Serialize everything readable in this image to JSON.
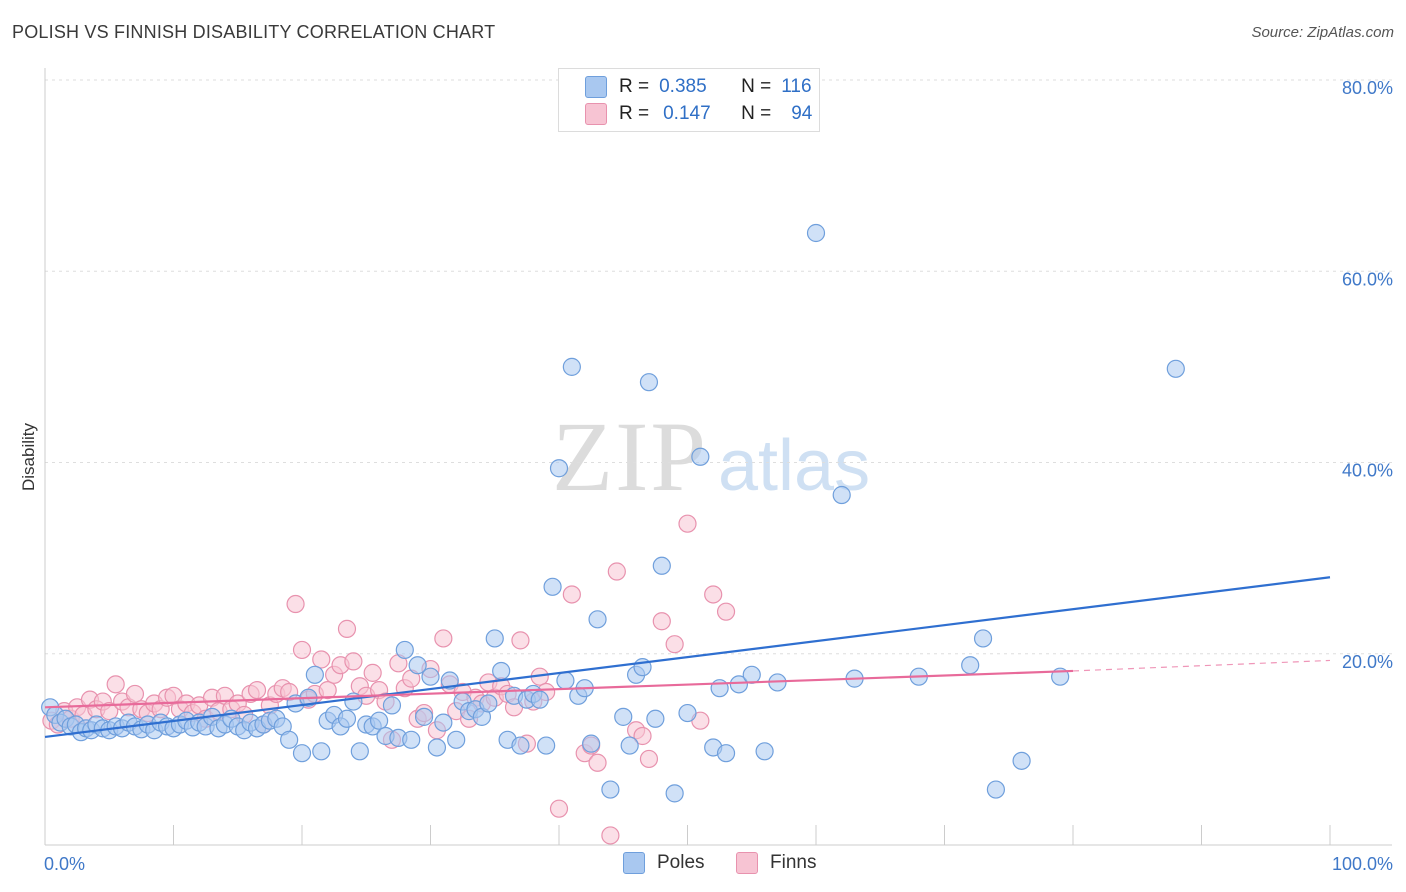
{
  "title": "POLISH VS FINNISH DISABILITY CORRELATION CHART",
  "source": "Source: ZipAtlas.com",
  "watermark": {
    "zip": "ZIP",
    "atlas": "atlas"
  },
  "legend": {
    "r_label": "R =",
    "n_label": "N =",
    "rows": [
      {
        "r": "0.385",
        "n": "116",
        "color": "#a9c8f0",
        "border": "#6f9fdc"
      },
      {
        "r": "0.147",
        "n": "94",
        "color": "#f7c4d3",
        "border": "#e892ae"
      }
    ]
  },
  "bottom_legend": [
    {
      "label": "Poles",
      "color": "#a9c8f0",
      "border": "#6f9fdc"
    },
    {
      "label": "Finns",
      "color": "#f7c4d3",
      "border": "#e892ae"
    }
  ],
  "chart_data": {
    "type": "scatter",
    "title": "POLISH VS FINNISH DISABILITY CORRELATION CHART",
    "xlabel": "",
    "ylabel": "Disability",
    "xlim": [
      0,
      100
    ],
    "ylim": [
      0,
      80
    ],
    "x_tick_labels": [
      "0.0%",
      "100.0%"
    ],
    "y_ticks": [
      20,
      40,
      60,
      80
    ],
    "y_tick_labels": [
      "20.0%",
      "40.0%",
      "60.0%",
      "80.0%"
    ],
    "grid": "horizontal dashed",
    "series": [
      {
        "name": "Poles",
        "color": "#6f9fdc",
        "fill": "#a9c8f0",
        "line_color": "#2f6fd0",
        "trend": {
          "x": [
            0,
            100
          ],
          "y": [
            11.3,
            28.0
          ]
        },
        "points": [
          [
            0.4,
            14.4
          ],
          [
            0.8,
            13.6
          ],
          [
            1.2,
            12.8
          ],
          [
            1.6,
            13.2
          ],
          [
            2.0,
            12.4
          ],
          [
            2.4,
            12.6
          ],
          [
            2.8,
            11.8
          ],
          [
            3.2,
            12.2
          ],
          [
            3.6,
            12.0
          ],
          [
            4.0,
            12.6
          ],
          [
            4.5,
            12.2
          ],
          [
            5.0,
            12.0
          ],
          [
            5.5,
            12.4
          ],
          [
            6.0,
            12.2
          ],
          [
            6.5,
            12.8
          ],
          [
            7.0,
            12.4
          ],
          [
            7.5,
            12.1
          ],
          [
            8.0,
            12.6
          ],
          [
            8.5,
            12.0
          ],
          [
            9.0,
            12.8
          ],
          [
            9.5,
            12.4
          ],
          [
            10.0,
            12.2
          ],
          [
            10.5,
            12.6
          ],
          [
            11.0,
            13.0
          ],
          [
            11.5,
            12.3
          ],
          [
            12.0,
            12.8
          ],
          [
            12.5,
            12.4
          ],
          [
            13.0,
            13.4
          ],
          [
            13.5,
            12.2
          ],
          [
            14.0,
            12.6
          ],
          [
            14.5,
            13.2
          ],
          [
            15.0,
            12.4
          ],
          [
            15.5,
            12.0
          ],
          [
            16.0,
            12.8
          ],
          [
            16.5,
            12.2
          ],
          [
            17.0,
            12.6
          ],
          [
            17.5,
            13.0
          ],
          [
            18.0,
            13.2
          ],
          [
            18.5,
            12.4
          ],
          [
            19.0,
            11.0
          ],
          [
            19.5,
            14.8
          ],
          [
            20.0,
            9.6
          ],
          [
            20.5,
            15.4
          ],
          [
            21.0,
            17.8
          ],
          [
            21.5,
            9.8
          ],
          [
            22.0,
            13.0
          ],
          [
            22.5,
            13.6
          ],
          [
            23.0,
            12.4
          ],
          [
            23.5,
            13.2
          ],
          [
            24.0,
            15.0
          ],
          [
            24.5,
            9.8
          ],
          [
            25.0,
            12.6
          ],
          [
            25.5,
            12.4
          ],
          [
            26.0,
            13.0
          ],
          [
            26.5,
            11.4
          ],
          [
            27.0,
            14.6
          ],
          [
            27.5,
            11.2
          ],
          [
            28.0,
            20.4
          ],
          [
            28.5,
            11.0
          ],
          [
            29.0,
            18.8
          ],
          [
            29.5,
            13.4
          ],
          [
            30.0,
            17.6
          ],
          [
            30.5,
            10.2
          ],
          [
            31.0,
            12.8
          ],
          [
            31.5,
            17.2
          ],
          [
            32.0,
            11.0
          ],
          [
            32.5,
            15.0
          ],
          [
            33.0,
            14.0
          ],
          [
            33.5,
            14.2
          ],
          [
            34.0,
            13.4
          ],
          [
            34.5,
            14.8
          ],
          [
            35.0,
            21.6
          ],
          [
            35.5,
            18.2
          ],
          [
            36.0,
            11.0
          ],
          [
            36.5,
            15.6
          ],
          [
            37.0,
            10.4
          ],
          [
            37.5,
            15.2
          ],
          [
            38.0,
            15.8
          ],
          [
            38.5,
            15.2
          ],
          [
            39.0,
            10.4
          ],
          [
            39.5,
            27.0
          ],
          [
            40.0,
            39.4
          ],
          [
            40.5,
            17.2
          ],
          [
            41.0,
            50.0
          ],
          [
            41.5,
            15.6
          ],
          [
            42.0,
            16.4
          ],
          [
            42.5,
            10.6
          ],
          [
            43.0,
            23.6
          ],
          [
            44.0,
            5.8
          ],
          [
            45.0,
            13.4
          ],
          [
            45.5,
            10.4
          ],
          [
            46.0,
            17.8
          ],
          [
            46.5,
            18.6
          ],
          [
            47.0,
            48.4
          ],
          [
            47.5,
            13.2
          ],
          [
            48.0,
            29.2
          ],
          [
            49.0,
            5.4
          ],
          [
            50.0,
            13.8
          ],
          [
            51.0,
            40.6
          ],
          [
            52.0,
            10.2
          ],
          [
            52.5,
            16.4
          ],
          [
            53.0,
            9.6
          ],
          [
            54.0,
            16.8
          ],
          [
            55.0,
            17.8
          ],
          [
            56.0,
            9.8
          ],
          [
            57.0,
            17.0
          ],
          [
            60.0,
            64.0
          ],
          [
            62.0,
            36.6
          ],
          [
            63.0,
            17.4
          ],
          [
            68.0,
            17.6
          ],
          [
            72.0,
            18.8
          ],
          [
            73.0,
            21.6
          ],
          [
            74.0,
            5.8
          ],
          [
            76.0,
            8.8
          ],
          [
            79.0,
            17.6
          ],
          [
            88.0,
            49.8
          ]
        ]
      },
      {
        "name": "Finns",
        "color": "#e892ae",
        "fill": "#f7c4d3",
        "line_color": "#e86a9a",
        "trend": {
          "x": [
            0,
            80
          ],
          "y": [
            14.4,
            18.2
          ]
        },
        "trend_dashed": {
          "x": [
            80,
            100
          ],
          "y": [
            18.2,
            19.3
          ]
        },
        "points": [
          [
            0.5,
            13.0
          ],
          [
            1.0,
            12.6
          ],
          [
            1.5,
            14.0
          ],
          [
            2.0,
            13.2
          ],
          [
            2.5,
            14.4
          ],
          [
            3.0,
            13.6
          ],
          [
            3.5,
            15.2
          ],
          [
            4.0,
            14.2
          ],
          [
            4.5,
            15.0
          ],
          [
            5.0,
            14.0
          ],
          [
            5.5,
            16.8
          ],
          [
            6.0,
            15.0
          ],
          [
            6.5,
            14.4
          ],
          [
            7.0,
            15.8
          ],
          [
            7.5,
            14.2
          ],
          [
            8.0,
            13.8
          ],
          [
            8.5,
            14.8
          ],
          [
            9.0,
            14.2
          ],
          [
            9.5,
            15.4
          ],
          [
            10.0,
            15.6
          ],
          [
            10.5,
            14.2
          ],
          [
            11.0,
            14.8
          ],
          [
            11.5,
            13.8
          ],
          [
            12.0,
            14.6
          ],
          [
            12.5,
            13.2
          ],
          [
            13.0,
            15.4
          ],
          [
            13.5,
            14.0
          ],
          [
            14.0,
            15.6
          ],
          [
            14.5,
            14.2
          ],
          [
            15.0,
            14.8
          ],
          [
            15.5,
            13.6
          ],
          [
            16.0,
            15.8
          ],
          [
            16.5,
            16.2
          ],
          [
            17.0,
            12.6
          ],
          [
            17.5,
            14.6
          ],
          [
            18.0,
            15.8
          ],
          [
            18.5,
            16.4
          ],
          [
            19.0,
            16.0
          ],
          [
            19.5,
            25.2
          ],
          [
            20.0,
            20.4
          ],
          [
            20.5,
            15.2
          ],
          [
            21.0,
            15.8
          ],
          [
            21.5,
            19.4
          ],
          [
            22.0,
            16.2
          ],
          [
            22.5,
            17.8
          ],
          [
            23.0,
            18.8
          ],
          [
            23.5,
            22.6
          ],
          [
            24.0,
            19.2
          ],
          [
            24.5,
            16.6
          ],
          [
            25.0,
            15.6
          ],
          [
            25.5,
            18.0
          ],
          [
            26.0,
            16.2
          ],
          [
            26.5,
            15.0
          ],
          [
            27.0,
            11.0
          ],
          [
            27.5,
            19.0
          ],
          [
            28.0,
            16.4
          ],
          [
            28.5,
            17.4
          ],
          [
            29.0,
            13.2
          ],
          [
            29.5,
            13.8
          ],
          [
            30.0,
            18.4
          ],
          [
            30.5,
            12.0
          ],
          [
            31.0,
            21.6
          ],
          [
            31.5,
            16.8
          ],
          [
            32.0,
            14.0
          ],
          [
            32.5,
            16.0
          ],
          [
            33.0,
            13.2
          ],
          [
            33.5,
            15.4
          ],
          [
            34.0,
            14.8
          ],
          [
            34.5,
            17.0
          ],
          [
            35.0,
            15.4
          ],
          [
            35.5,
            16.6
          ],
          [
            36.0,
            15.8
          ],
          [
            36.5,
            14.4
          ],
          [
            37.0,
            21.4
          ],
          [
            37.5,
            10.6
          ],
          [
            38.0,
            15.0
          ],
          [
            38.5,
            17.6
          ],
          [
            39.0,
            16.0
          ],
          [
            40.0,
            3.8
          ],
          [
            41.0,
            26.2
          ],
          [
            42.0,
            9.6
          ],
          [
            42.5,
            10.4
          ],
          [
            43.0,
            8.6
          ],
          [
            44.0,
            1.0
          ],
          [
            44.5,
            28.6
          ],
          [
            46.0,
            12.0
          ],
          [
            46.5,
            11.4
          ],
          [
            47.0,
            9.0
          ],
          [
            48.0,
            23.4
          ],
          [
            49.0,
            21.0
          ],
          [
            50.0,
            33.6
          ],
          [
            51.0,
            13.0
          ],
          [
            52.0,
            26.2
          ],
          [
            53.0,
            24.4
          ]
        ]
      }
    ]
  }
}
